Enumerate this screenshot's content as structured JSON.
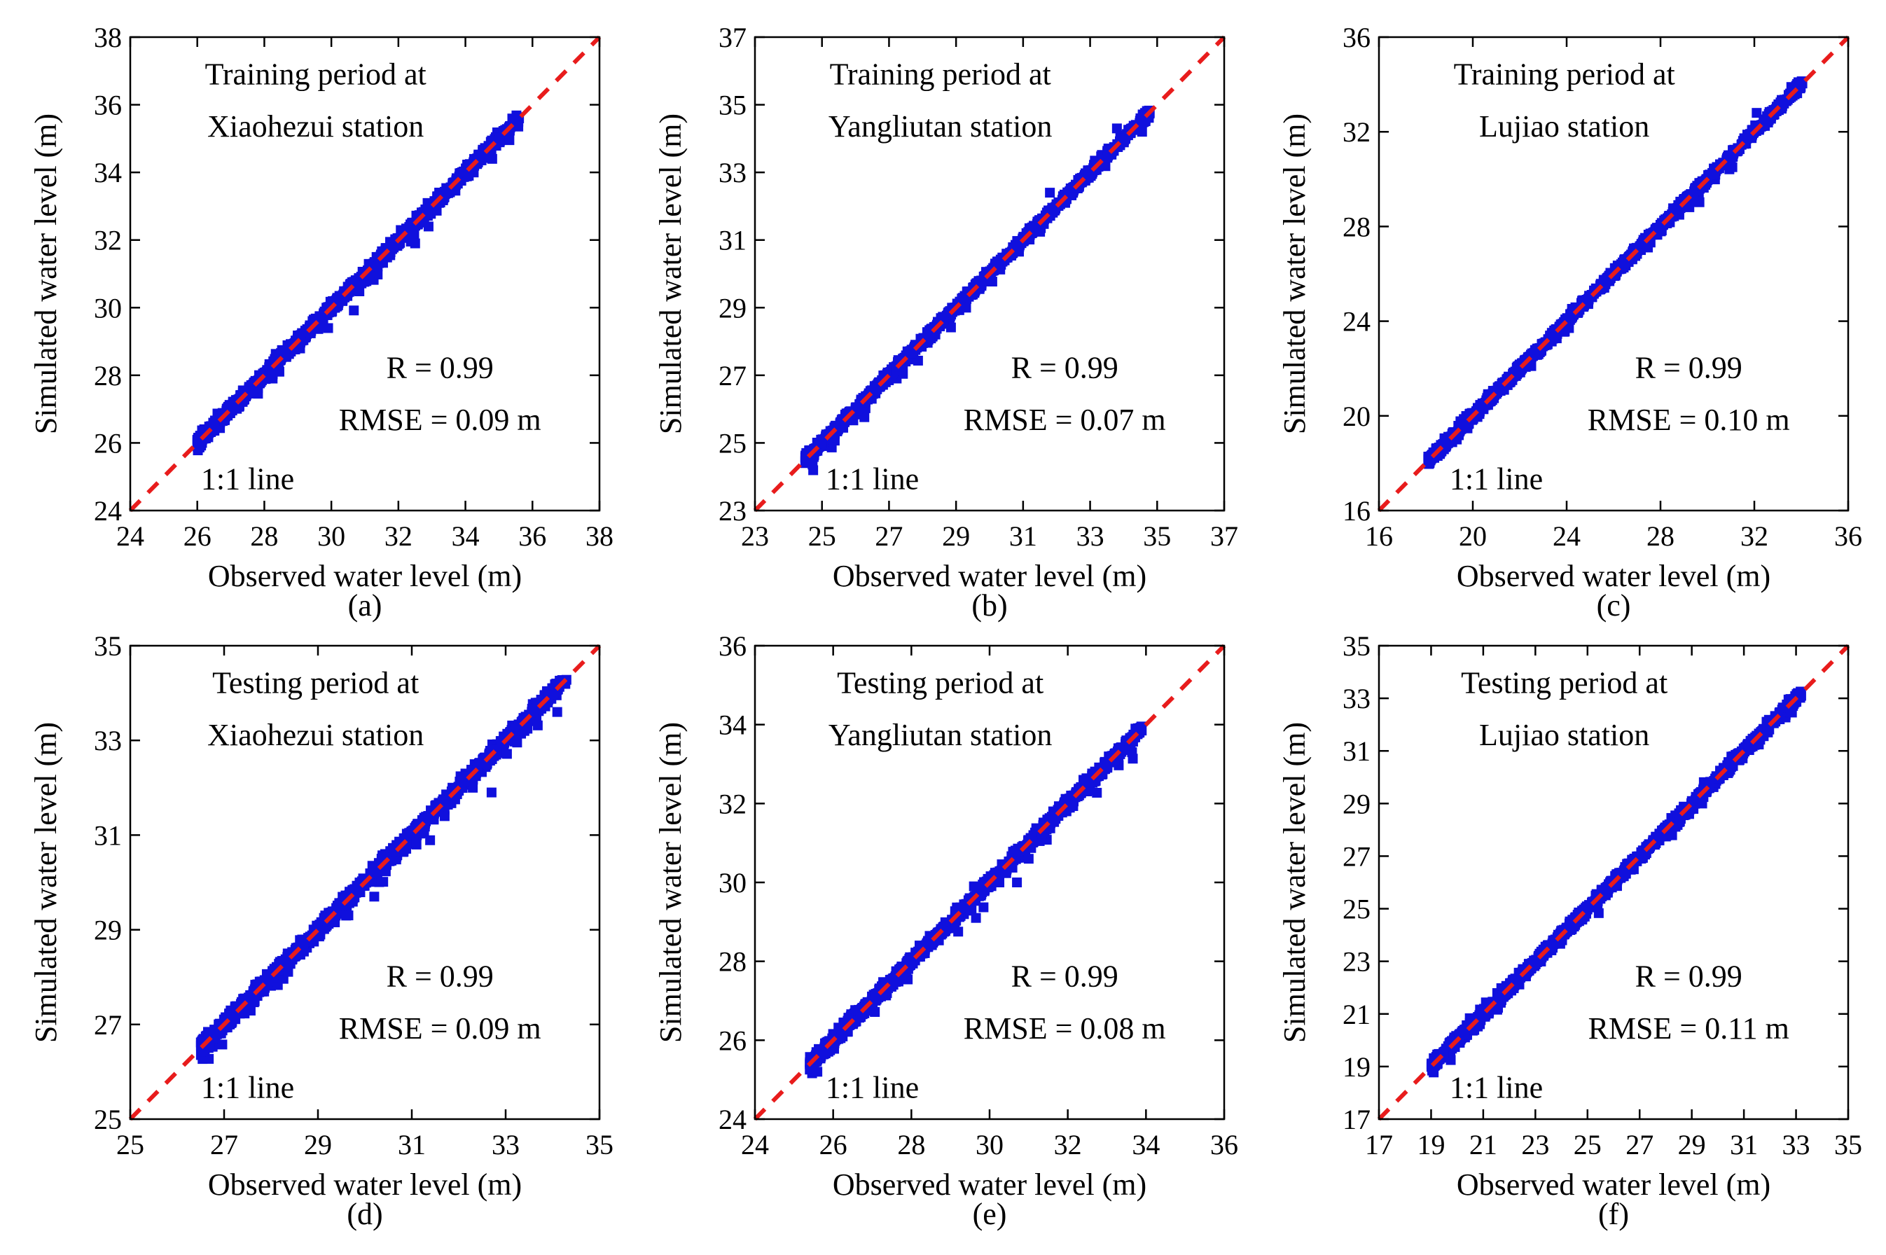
{
  "figure": {
    "x_axis_label": "Observed water level (m)",
    "y_axis_label": "Simulated water level (m)",
    "one_to_one_label": "1:1 line"
  },
  "colors": {
    "points": "#1010dd",
    "identity_line": "#e81c1c",
    "axes": "#000000"
  },
  "chart_data": [
    {
      "type": "scatter",
      "panel": "(a)",
      "title": [
        "Training period at",
        "Xiaohezui station"
      ],
      "xlabel": "Observed water level (m)",
      "ylabel": "Simulated water level (m)",
      "xlim": [
        24,
        38
      ],
      "ylim": [
        24,
        38
      ],
      "xticks": [
        24,
        26,
        28,
        30,
        32,
        34,
        36,
        38
      ],
      "yticks": [
        24,
        26,
        28,
        30,
        32,
        34,
        36,
        38
      ],
      "stats": [
        "R = 0.99",
        "RMSE = 0.09 m"
      ],
      "series": [
        {
          "name": "Training",
          "x_range": [
            26.0,
            35.6
          ],
          "spread": 0.09,
          "outliers": [
            [
              29.6,
              29.4
            ],
            [
              32.5,
              31.9
            ],
            [
              32.9,
              32.4
            ],
            [
              34.1,
              33.9
            ],
            [
              34.8,
              34.4
            ]
          ]
        }
      ],
      "identity_line": true
    },
    {
      "type": "scatter",
      "panel": "(b)",
      "title": [
        "Training period at",
        "Yangliutan station"
      ],
      "xlabel": "Observed water level (m)",
      "ylabel": "Simulated water level (m)",
      "xlim": [
        23,
        37
      ],
      "ylim": [
        23,
        37
      ],
      "xticks": [
        23,
        25,
        27,
        29,
        31,
        33,
        35,
        37
      ],
      "yticks": [
        23,
        25,
        27,
        29,
        31,
        33,
        35,
        37
      ],
      "stats": [
        "R = 0.99",
        "RMSE = 0.07 m"
      ],
      "series": [
        {
          "name": "Training",
          "x_range": [
            24.5,
            34.8
          ],
          "spread": 0.07,
          "outliers": [
            [
              31.8,
              32.4
            ],
            [
              33.8,
              34.3
            ],
            [
              29.3,
              29.0
            ]
          ]
        }
      ],
      "identity_line": true
    },
    {
      "type": "scatter",
      "panel": "(c)",
      "title": [
        "Training period at",
        "Lujiao station"
      ],
      "xlabel": "Observed water level (m)",
      "ylabel": "Simulated water level (m)",
      "xlim": [
        16,
        36
      ],
      "ylim": [
        16,
        36
      ],
      "xticks": [
        16,
        20,
        24,
        28,
        32,
        36
      ],
      "yticks": [
        16,
        20,
        24,
        28,
        32,
        36
      ],
      "stats": [
        "R = 0.99",
        "RMSE = 0.10 m"
      ],
      "series": [
        {
          "name": "Training",
          "x_range": [
            18.1,
            34.1
          ],
          "spread": 0.1,
          "outliers": [
            [
              32.1,
              32.8
            ],
            [
              30.3,
              30.2
            ]
          ]
        }
      ],
      "identity_line": true
    },
    {
      "type": "scatter",
      "panel": "(d)",
      "title": [
        "Testing period at",
        "Xiaohezui station"
      ],
      "xlabel": "Observed water level (m)",
      "ylabel": "Simulated water level (m)",
      "xlim": [
        25,
        35
      ],
      "ylim": [
        25,
        35
      ],
      "xticks": [
        25,
        27,
        29,
        31,
        33,
        35
      ],
      "yticks": [
        25,
        27,
        29,
        31,
        33,
        35
      ],
      "stats": [
        "R = 0.99",
        "RMSE = 0.09 m"
      ],
      "series": [
        {
          "name": "Testing",
          "x_range": [
            26.5,
            34.3
          ],
          "spread": 0.08,
          "outliers": [
            [
              32.7,
              31.9
            ],
            [
              32.3,
              32.0
            ],
            [
              30.2,
              29.7
            ],
            [
              31.7,
              31.4
            ],
            [
              33.9,
              33.8
            ],
            [
              34.1,
              33.6
            ],
            [
              33.4,
              33.2
            ],
            [
              31.1,
              30.8
            ],
            [
              29.6,
              29.3
            ]
          ]
        }
      ],
      "identity_line": true
    },
    {
      "type": "scatter",
      "panel": "(e)",
      "title": [
        "Testing period at",
        "Yangliutan station"
      ],
      "xlabel": "Observed water level (m)",
      "ylabel": "Simulated water level (m)",
      "xlim": [
        24,
        36
      ],
      "ylim": [
        24,
        36
      ],
      "xticks": [
        24,
        26,
        28,
        30,
        32,
        34,
        36
      ],
      "yticks": [
        24,
        26,
        28,
        30,
        32,
        34,
        36
      ],
      "stats": [
        "R = 0.99",
        "RMSE = 0.08 m"
      ],
      "series": [
        {
          "name": "Testing",
          "x_range": [
            25.4,
            33.9
          ],
          "spread": 0.08,
          "outliers": [
            [
              30.7,
              30.0
            ],
            [
              31.0,
              30.6
            ],
            [
              29.6,
              29.9
            ],
            [
              32.4,
              32.6
            ],
            [
              33.5,
              33.6
            ]
          ]
        }
      ],
      "identity_line": true
    },
    {
      "type": "scatter",
      "panel": "(f)",
      "title": [
        "Testing period at",
        "Lujiao station"
      ],
      "xlabel": "Observed water level (m)",
      "ylabel": "Simulated water level (m)",
      "xlim": [
        17,
        35
      ],
      "ylim": [
        17,
        35
      ],
      "xticks": [
        17,
        19,
        21,
        23,
        25,
        27,
        29,
        31,
        33,
        35
      ],
      "yticks": [
        17,
        19,
        21,
        23,
        25,
        27,
        29,
        31,
        33,
        35
      ],
      "stats": [
        "R = 0.99",
        "RMSE = 0.11 m"
      ],
      "series": [
        {
          "name": "Testing",
          "x_range": [
            19.0,
            33.2
          ],
          "spread": 0.11,
          "outliers": [
            [
              29.4,
              29.0
            ],
            [
              30.6,
              30.8
            ],
            [
              28.9,
              28.6
            ],
            [
              32.0,
              32.1
            ]
          ]
        }
      ],
      "identity_line": true
    }
  ]
}
